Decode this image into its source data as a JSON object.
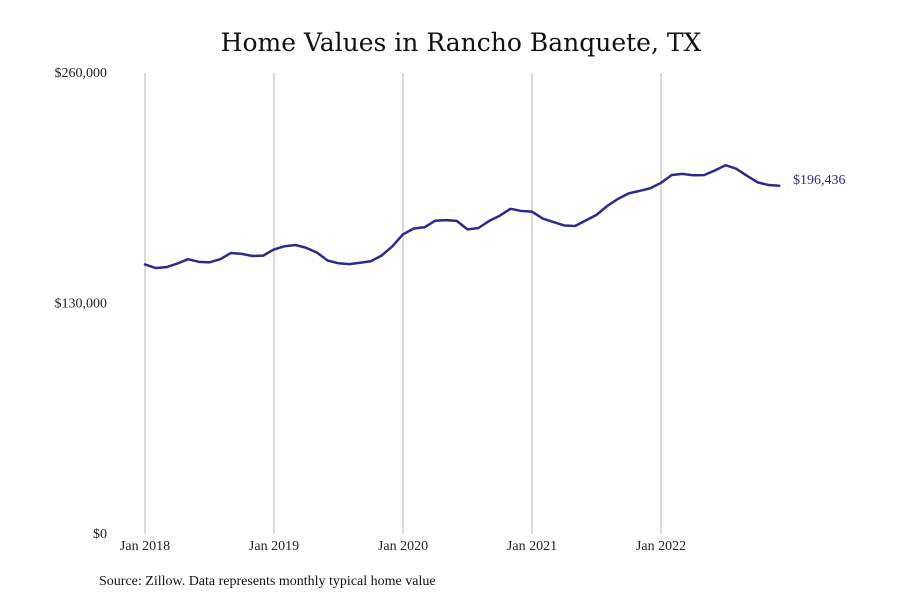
{
  "chart_data": {
    "type": "line",
    "title": "Home Values in Rancho Banquete, TX",
    "xlabel": "",
    "ylabel": "",
    "source": "Source: Zillow. Data represents monthly typical home value",
    "ylim": [
      0,
      260000
    ],
    "y_ticks": [
      {
        "value": 0,
        "label": "$0"
      },
      {
        "value": 130000,
        "label": "$130,000"
      },
      {
        "value": 260000,
        "label": "$260,000"
      }
    ],
    "x_ticks": [
      {
        "value": "2018-01",
        "label": "Jan 2018"
      },
      {
        "value": "2019-01",
        "label": "Jan 2019"
      },
      {
        "value": "2020-01",
        "label": "Jan 2020"
      },
      {
        "value": "2021-01",
        "label": "Jan 2021"
      },
      {
        "value": "2022-01",
        "label": "Jan 2022"
      }
    ],
    "grid": "vertical",
    "line_color": "#2e2a8c",
    "end_label": "$196,436",
    "series": [
      {
        "x": [
          "2018-01",
          "2018-02",
          "2018-03",
          "2018-04",
          "2018-05",
          "2018-06",
          "2018-07",
          "2018-08",
          "2018-09",
          "2018-10",
          "2018-11",
          "2018-12",
          "2019-01",
          "2019-02",
          "2019-03",
          "2019-04",
          "2019-05",
          "2019-06",
          "2019-07",
          "2019-08",
          "2019-09",
          "2019-10",
          "2019-11",
          "2019-12",
          "2020-01",
          "2020-02",
          "2020-03",
          "2020-04",
          "2020-05",
          "2020-06",
          "2020-07",
          "2020-08",
          "2020-09",
          "2020-10",
          "2020-11",
          "2020-12",
          "2021-01",
          "2021-02",
          "2021-03",
          "2021-04",
          "2021-05",
          "2021-06",
          "2021-07",
          "2021-08",
          "2021-09",
          "2021-10",
          "2021-11",
          "2021-12",
          "2022-01",
          "2022-02",
          "2022-03",
          "2022-04",
          "2022-05",
          "2022-06",
          "2022-07",
          "2022-08",
          "2022-09",
          "2022-10",
          "2022-11",
          "2022-12"
        ],
        "values": [
          152000,
          150000,
          150500,
          152500,
          155000,
          153500,
          153200,
          155000,
          158500,
          158000,
          156800,
          157000,
          160500,
          162300,
          163000,
          161400,
          158700,
          154200,
          152700,
          152200,
          153000,
          153800,
          157000,
          162200,
          169000,
          172300,
          173000,
          176700,
          177000,
          176600,
          171800,
          172500,
          176500,
          179500,
          183400,
          182200,
          181800,
          177900,
          175900,
          174000,
          173700,
          176800,
          180000,
          185000,
          189000,
          192100,
          193500,
          195000,
          198000,
          202500,
          203100,
          202300,
          202400,
          205000,
          208000,
          206000,
          202000,
          198300,
          196800,
          196436
        ]
      }
    ]
  }
}
